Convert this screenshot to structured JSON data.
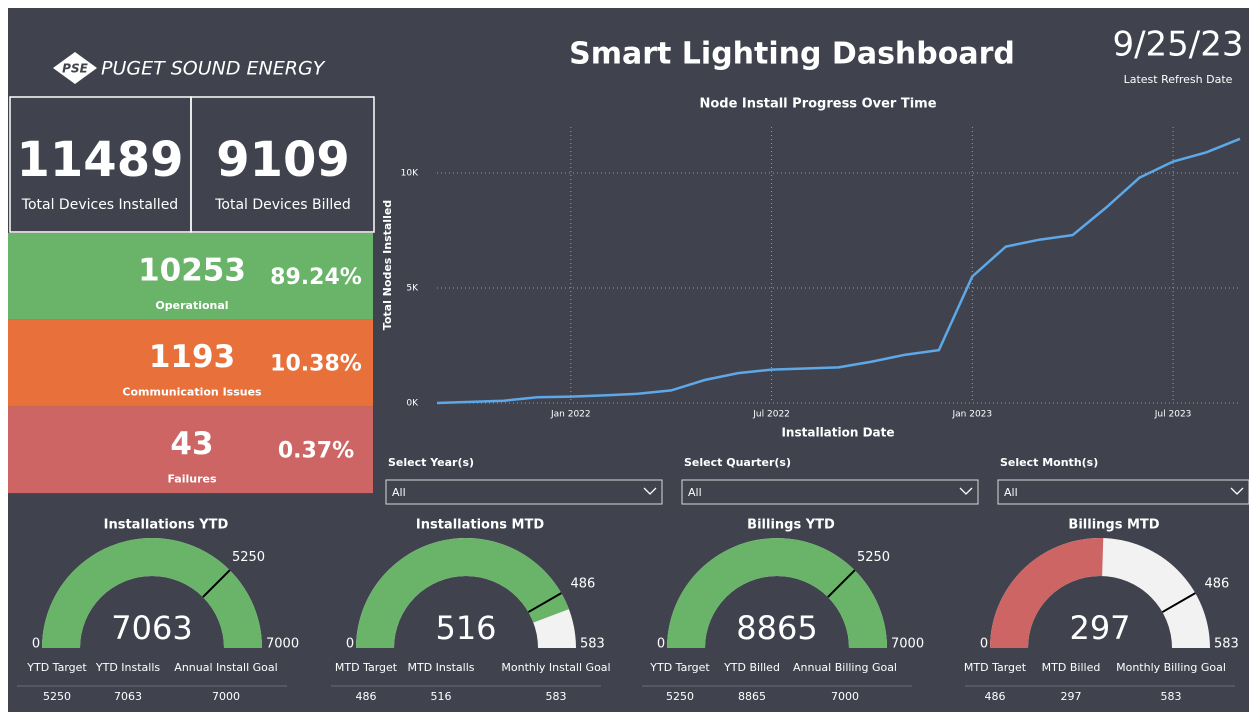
{
  "header": {
    "logo": "PUGET SOUND ENERGY",
    "logo_mark": "PSE",
    "title": "Smart Lighting Dashboard",
    "date": "9/25/23",
    "date_caption": "Latest Refresh Date"
  },
  "totals": [
    {
      "value": "11489",
      "label": "Total Devices Installed"
    },
    {
      "value": "9109",
      "label": "Total Devices Billed"
    }
  ],
  "status": [
    {
      "value": "10253",
      "percent": "89.24%",
      "label": "Operational",
      "color": "#6ab46a"
    },
    {
      "value": "1193",
      "percent": "10.38%",
      "label": "Communication Issues",
      "color": "#e8703a"
    },
    {
      "value": "43",
      "percent": "0.37%",
      "label": "Failures",
      "color": "#cd6565"
    }
  ],
  "chart_data": {
    "type": "line",
    "title": "Node Install Progress Over Time",
    "x_label": "Installation Date",
    "y_label": "Total Nodes Installed",
    "x": [
      "2021-09",
      "2021-10",
      "2021-11",
      "2021-12",
      "2022-01",
      "2022-02",
      "2022-03",
      "2022-04",
      "2022-05",
      "2022-06",
      "2022-07",
      "2022-08",
      "2022-09",
      "2022-10",
      "2022-11",
      "2022-12",
      "2023-01",
      "2023-02",
      "2023-03",
      "2023-04",
      "2023-05",
      "2023-06",
      "2023-07",
      "2023-08",
      "2023-09"
    ],
    "values": [
      0,
      50,
      100,
      250,
      280,
      330,
      400,
      550,
      1000,
      1300,
      1450,
      1500,
      1550,
      1800,
      2100,
      2300,
      5500,
      6800,
      7100,
      7300,
      8500,
      9800,
      10500,
      10900,
      11489
    ],
    "color": "#5ea8e8",
    "xlim": [
      "2021-09",
      "2023-09"
    ],
    "xticks": [
      {
        "value": "2022-01",
        "label": "Jan 2022"
      },
      {
        "value": "2022-07",
        "label": "Jul 2022"
      },
      {
        "value": "2023-01",
        "label": "Jan 2023"
      },
      {
        "value": "2023-07",
        "label": "Jul 2023"
      }
    ],
    "ylim": [
      0,
      12000
    ],
    "yticks": [
      {
        "value": 0,
        "label": "0K"
      },
      {
        "value": 5000,
        "label": "5K"
      },
      {
        "value": 10000,
        "label": "10K"
      }
    ],
    "grid": true
  },
  "slicers": [
    {
      "label": "Select Year(s)",
      "selection": "All"
    },
    {
      "label": "Select Quarter(s)",
      "selection": "All"
    },
    {
      "label": "Select Month(s)",
      "selection": "All"
    }
  ],
  "gauges": [
    {
      "title": "Installations YTD",
      "min": 0,
      "max": 7000,
      "target": 5250,
      "value": 7063,
      "color": "#6ab46a",
      "columns": [
        "YTD Target",
        "YTD Installs",
        "Annual Install Goal"
      ]
    },
    {
      "title": "Installations MTD",
      "min": 0,
      "max": 583,
      "target": 486,
      "value": 516,
      "color": "#6ab46a",
      "columns": [
        "MTD Target",
        "MTD Installs",
        "Monthly Install Goal"
      ]
    },
    {
      "title": "Billings YTD",
      "min": 0,
      "max": 7000,
      "target": 5250,
      "value": 8865,
      "color": "#6ab46a",
      "columns": [
        "YTD Target",
        "YTD Billed",
        "Annual Billing Goal"
      ]
    },
    {
      "title": "Billings MTD",
      "min": 0,
      "max": 583,
      "target": 486,
      "value": 297,
      "color": "#cd6565",
      "columns": [
        "MTD Target",
        "MTD Billed",
        "Monthly Billing Goal"
      ]
    }
  ]
}
